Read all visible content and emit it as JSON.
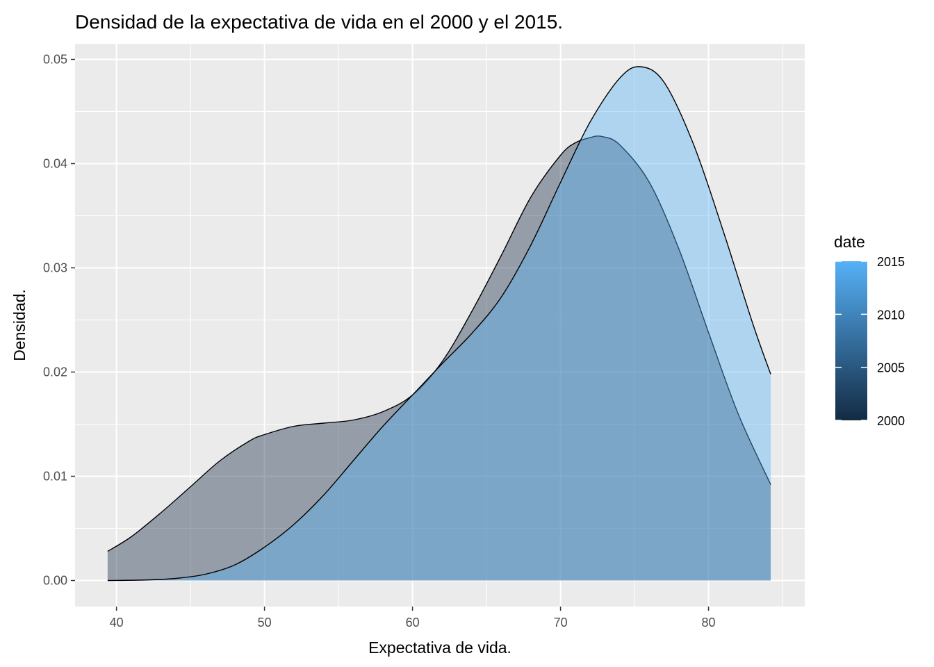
{
  "chart_data": {
    "type": "area",
    "title": "Densidad de la expectativa de vida en el 2000 y el 2015.",
    "xlabel": "Expectativa de vida.",
    "ylabel": "Densidad.",
    "xlim": [
      37.2,
      86.5
    ],
    "ylim": [
      -0.0025,
      0.0515
    ],
    "x_ticks": [
      40,
      50,
      60,
      70,
      80
    ],
    "y_ticks": [
      0.0,
      0.01,
      0.02,
      0.03,
      0.04,
      0.05
    ],
    "x_tick_labels": [
      "40",
      "50",
      "60",
      "70",
      "80"
    ],
    "y_tick_labels": [
      "0.00",
      "0.01",
      "0.02",
      "0.03",
      "0.04",
      "0.05"
    ],
    "grid": true,
    "legend": {
      "title": "date",
      "position": "right",
      "type": "colorbar",
      "range": [
        2000,
        2015
      ],
      "breaks": [
        2000,
        2005,
        2010,
        2015
      ],
      "break_labels": [
        "2000",
        "2005",
        "2010",
        "2015"
      ],
      "color_low": "#132b43",
      "color_high": "#56b1f7"
    },
    "series": [
      {
        "date": 2000,
        "fill": "#132b43",
        "opacity": 0.4,
        "x": [
          39.4,
          41,
          43,
          45,
          47,
          49,
          50,
          52,
          54,
          56,
          58,
          60,
          62,
          64,
          66,
          68,
          70,
          71,
          72,
          72.8,
          74,
          76,
          78,
          80,
          82,
          84.2
        ],
        "y": [
          0.0028,
          0.0042,
          0.0065,
          0.009,
          0.0115,
          0.0134,
          0.014,
          0.0148,
          0.0151,
          0.0154,
          0.0162,
          0.0178,
          0.021,
          0.0258,
          0.0312,
          0.0368,
          0.0408,
          0.042,
          0.0425,
          0.0426,
          0.0418,
          0.0382,
          0.0318,
          0.0238,
          0.016,
          0.0092
        ]
      },
      {
        "date": 2015,
        "fill": "#56b1f7",
        "opacity": 0.4,
        "x": [
          39.4,
          42,
          44,
          46,
          48,
          50,
          52,
          54,
          56,
          58,
          60,
          62,
          64,
          66,
          68,
          70,
          72,
          74,
          75.4,
          77,
          79,
          81,
          83,
          84.2
        ],
        "y": [
          0.0,
          5e-05,
          0.0002,
          0.0006,
          0.0015,
          0.0032,
          0.0054,
          0.0082,
          0.0115,
          0.0148,
          0.0178,
          0.0208,
          0.0237,
          0.0272,
          0.0322,
          0.0382,
          0.044,
          0.0482,
          0.0493,
          0.0478,
          0.0418,
          0.0335,
          0.0246,
          0.0198
        ]
      }
    ]
  }
}
